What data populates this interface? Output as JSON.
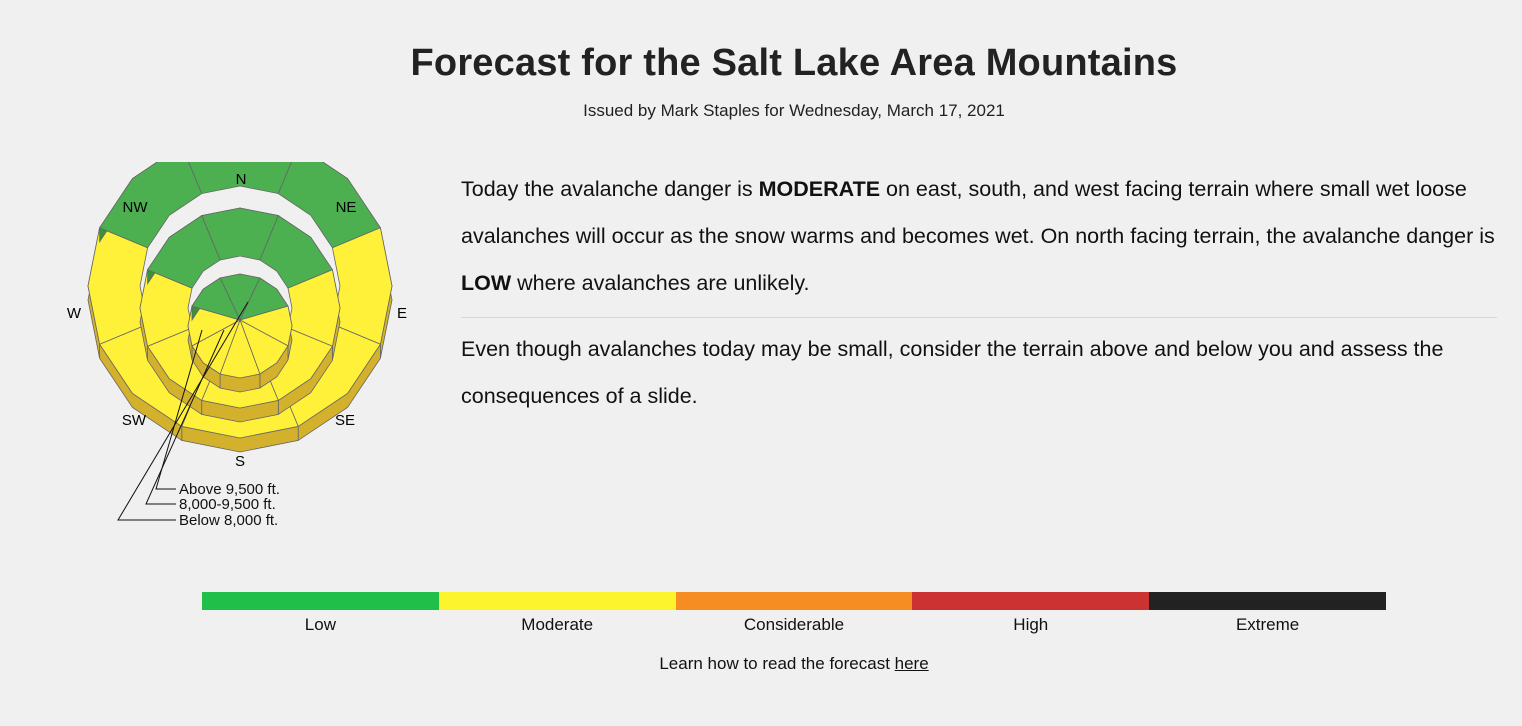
{
  "header": {
    "title": "Forecast for the Salt Lake Area Mountains",
    "subtitle": "Issued by Mark Staples for Wednesday, March 17, 2021"
  },
  "rose": {
    "directions": [
      "N",
      "NE",
      "E",
      "SE",
      "S",
      "SW",
      "W",
      "NW"
    ],
    "elevation_bands": [
      "Above 9,500 ft.",
      "8,000-9,500 ft.",
      "Below 8,000 ft."
    ],
    "danger_by_aspect": {
      "N": "Low",
      "NE": "Low",
      "E": "Moderate",
      "SE": "Moderate",
      "S": "Moderate",
      "SW": "Moderate",
      "W": "Moderate",
      "NW": "Low"
    },
    "colors": {
      "low": "#4caf50",
      "moderate": "#fff13a",
      "side": "#d4b12c"
    }
  },
  "summary": {
    "p1_a": "Today the avalanche danger is ",
    "p1_b": "MODERATE",
    "p1_c": " on east, south, and west facing terrain where small wet loose avalanches will occur as the snow warms and becomes wet. On north facing terrain, the avalanche danger is ",
    "p1_d": "LOW",
    "p1_e": " where avalanches are unlikely.",
    "p2": "Even though avalanches today may be small, consider the terrain above and below you and assess the consequences of a slide."
  },
  "danger_scale": [
    {
      "label": "Low",
      "color": "#1fbf4a"
    },
    {
      "label": "Moderate",
      "color": "#fcf52e"
    },
    {
      "label": "Considerable",
      "color": "#f68d23"
    },
    {
      "label": "High",
      "color": "#cc3232"
    },
    {
      "label": "Extreme",
      "color": "#222222"
    }
  ],
  "learn": {
    "text": "Learn how to read the forecast ",
    "link": "here"
  }
}
